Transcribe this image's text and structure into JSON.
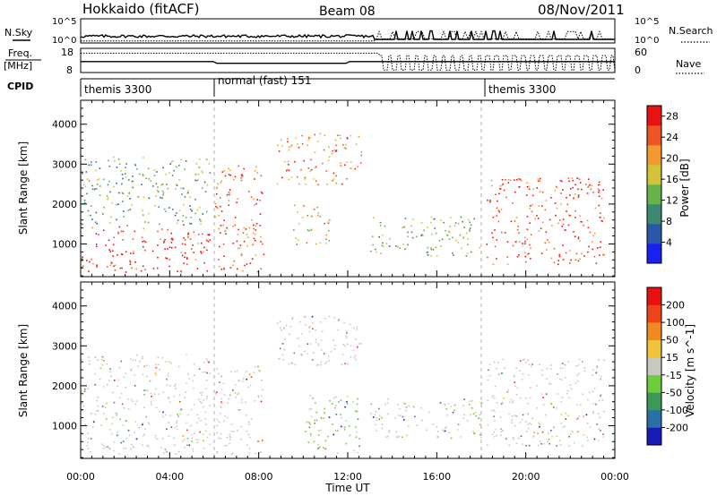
{
  "header": {
    "station": "Hokkaido (fitACF)",
    "beam": "Beam 08",
    "date": "08/Nov/2011"
  },
  "strips": {
    "nsky_label": "N.Sky",
    "nsearch_label": "N.Search",
    "freq_label": "Freq.",
    "freq_unit": "[MHz]",
    "nave_label": "Nave",
    "cpid_label": "CPID",
    "nsky_ticks": [
      "10^5",
      "10^0"
    ],
    "nsearch_ticks": [
      "10^5",
      "10^0"
    ],
    "freq_ticks": [
      "18",
      "8"
    ],
    "nave_ticks": [
      "60",
      "0"
    ],
    "cpid_segments": [
      {
        "start_hr": 0,
        "label": "themis 3300"
      },
      {
        "start_hr": 6,
        "label": "normal (fast) 151"
      },
      {
        "start_hr": 18,
        "label": "themis 3300"
      }
    ]
  },
  "chart_data": [
    {
      "type": "heatmap",
      "title": "",
      "xlabel": "",
      "ylabel": "Slant Range [km]",
      "xlim_hr": [
        0,
        24
      ],
      "ylim_km": [
        180,
        4600
      ],
      "y_ticks": [
        1000,
        2000,
        3000,
        4000
      ],
      "colorbar": {
        "label": "Power [dB]",
        "ticks": [
          4,
          8,
          12,
          16,
          20,
          24,
          28
        ],
        "range": [
          0,
          30
        ],
        "colors": [
          "#1a20f0",
          "#2a58a8",
          "#3a8a70",
          "#66b34a",
          "#d6c23a",
          "#f09a30",
          "#ee5522",
          "#e81212"
        ]
      },
      "scatter_regions": [
        {
          "t0": 0,
          "t1": 5.8,
          "r0": 300,
          "r1": 1500,
          "level": 28
        },
        {
          "t0": 0,
          "t1": 5.8,
          "r0": 1500,
          "r1": 3200,
          "level": 12
        },
        {
          "t0": 6,
          "t1": 8.2,
          "r0": 300,
          "r1": 3000,
          "level": 26
        },
        {
          "t0": 8.8,
          "t1": 12.6,
          "r0": 2500,
          "r1": 3800,
          "level": 22
        },
        {
          "t0": 9.5,
          "t1": 11.2,
          "r0": 1000,
          "r1": 2000,
          "level": 18
        },
        {
          "t0": 13,
          "t1": 18,
          "r0": 700,
          "r1": 1700,
          "level": 14
        },
        {
          "t0": 18.2,
          "t1": 23.5,
          "r0": 500,
          "r1": 2700,
          "level": 26
        }
      ]
    },
    {
      "type": "heatmap",
      "title": "",
      "xlabel": "Time UT",
      "ylabel": "Slant Range [km]",
      "xlim_hr": [
        0,
        24
      ],
      "ylim_km": [
        180,
        4600
      ],
      "x_ticks": [
        "00:00",
        "04:00",
        "08:00",
        "12:00",
        "16:00",
        "20:00",
        "00:00"
      ],
      "y_ticks": [
        1000,
        2000,
        3000,
        4000
      ],
      "colorbar": {
        "label": "Velocity [m s^-1]",
        "ticks": [
          200,
          100,
          50,
          15,
          -15,
          -50,
          -100,
          -200
        ],
        "range": [
          -250,
          250
        ],
        "colors": [
          "#1a1ab8",
          "#2a70a8",
          "#3a9a55",
          "#6ccc3a",
          "#c8c8c0",
          "#f2c23a",
          "#f08a20",
          "#ee4418",
          "#e81010"
        ]
      },
      "scatter_regions": [
        {
          "t0": 0,
          "t1": 5.8,
          "r0": 300,
          "r1": 2800,
          "level": 0
        },
        {
          "t0": 6,
          "t1": 8.2,
          "r0": 300,
          "r1": 2500,
          "level": 0
        },
        {
          "t0": 8.8,
          "t1": 12.6,
          "r0": 2500,
          "r1": 3800,
          "level": 0
        },
        {
          "t0": 10,
          "t1": 12.5,
          "r0": 300,
          "r1": 1800,
          "level": -30
        },
        {
          "t0": 13,
          "t1": 18,
          "r0": 700,
          "r1": 1700,
          "level": -20
        },
        {
          "t0": 18.2,
          "t1": 23.5,
          "r0": 500,
          "r1": 2700,
          "level": 0
        }
      ]
    }
  ]
}
